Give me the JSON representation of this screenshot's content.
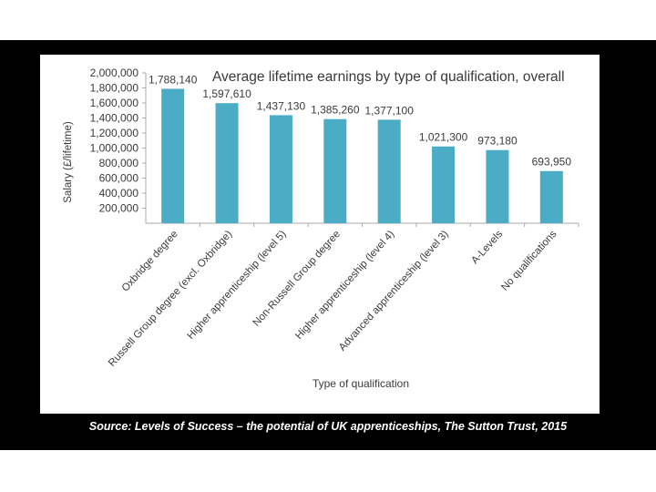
{
  "chart_data": {
    "type": "bar",
    "title": "Average lifetime earnings by type of qualification, overall",
    "xlabel": "Type of qualification",
    "ylabel": "Salary (£/lifetime)",
    "ylim": [
      0,
      2000000
    ],
    "yticks": [
      200000,
      400000,
      600000,
      800000,
      1000000,
      1200000,
      1400000,
      1600000,
      1800000,
      2000000
    ],
    "ytick_labels": [
      "200,000",
      "400,000",
      "600,000",
      "800,000",
      "1,000,000",
      "1,200,000",
      "1,400,000",
      "1,600,000",
      "1,800,000",
      "2,000,000"
    ],
    "categories": [
      "Oxbridge degree",
      "Russell Group degree (excl. Oxbridge)",
      "Higher apprenticeship (level 5)",
      "Non-Russell Group degree",
      "Higher apprenticeship (level 4)",
      "Advanced apprenticeship (level 3)",
      "A-Levels",
      "No qualifications"
    ],
    "values": [
      1788140,
      1597610,
      1437130,
      1385260,
      1377100,
      1021300,
      973180,
      693950
    ],
    "value_labels": [
      "1,788,140",
      "1,597,610",
      "1,437,130",
      "1,385,260",
      "1,377,100",
      "1,021,300",
      "973,180",
      "693,950"
    ],
    "bar_color": "#4bacc6",
    "grid": false,
    "legend": "none"
  },
  "source_text": "Source: Levels of Success – the potential of UK apprenticeships, The Sutton Trust, 2015",
  "colors": {
    "background": "#000000",
    "panel": "#ffffff",
    "text": "#3a3a3a",
    "axis": "#aaaaaa"
  }
}
